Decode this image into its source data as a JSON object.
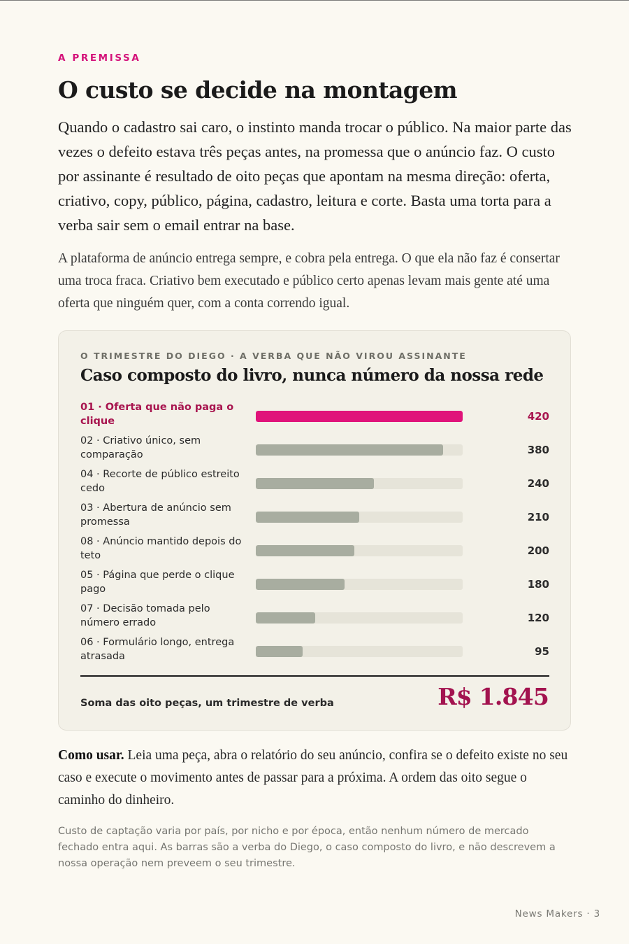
{
  "section": {
    "eyebrow": "A PREMISSA",
    "title": "O custo se decide na montagem",
    "lead": "Quando o cadastro sai caro, o instinto manda trocar o público. Na maior parte das vezes o defeito estava três peças antes, na promessa que o anúncio faz. O custo por assinante é resultado de oito peças que apontam na mesma direção: oferta, criativo, copy, público, página, cadastro, leitura e corte. Basta uma torta para a verba sair sem o email entrar na base.",
    "body": "A plataforma de anúncio entrega sempre, e cobra pela entrega. O que ela não faz é consertar uma troca fraca. Criativo bem executado e público certo apenas levam mais gente até uma oferta que ninguém quer, com a conta correndo igual."
  },
  "chart_data": {
    "type": "bar",
    "orientation": "horizontal",
    "eyebrow": "O TRIMESTRE DO DIEGO · A VERBA QUE NÃO VIROU ASSINANTE",
    "title": "Caso composto do livro, nunca número da nossa rede",
    "xlim": [
      0,
      420
    ],
    "categories": [
      "01 · Oferta que não paga o clique",
      "02 · Criativo único, sem comparação",
      "04 · Recorte de público estreito cedo",
      "03 · Abertura de anúncio sem promessa",
      "08 · Anúncio mantido depois do teto",
      "05 · Página que perde o clique pago",
      "07 · Decisão tomada pelo número errado",
      "06 · Formulário longo, entrega atrasada"
    ],
    "values": [
      420,
      380,
      240,
      210,
      200,
      180,
      120,
      95
    ],
    "value_labels": [
      "420",
      "380",
      "240",
      "210",
      "200",
      "180",
      "120",
      "95"
    ],
    "highlight_index": 0,
    "total_label": "Soma das oito peças, um trimestre de verba",
    "total_value": "R$ 1.845",
    "colors": {
      "highlight": "#e0137a",
      "bar": "#a8ada0",
      "track": "#e6e4d9",
      "accent_text": "#a3134f"
    }
  },
  "howto": {
    "lead_in": "Como usar.",
    "text": " Leia uma peça, abra o relatório do seu anúncio, confira se o defeito existe no seu caso e execute o movimento antes de passar para a próxima. A ordem das oito segue o caminho do dinheiro."
  },
  "footnote": "Custo de captação varia por país, por nicho e por época, então nenhum número de mercado fechado entra aqui. As barras são a verba do Diego, o caso composto do livro, e não descrevem a nossa operação nem preveem o seu trimestre.",
  "folio": "News Makers · 3"
}
